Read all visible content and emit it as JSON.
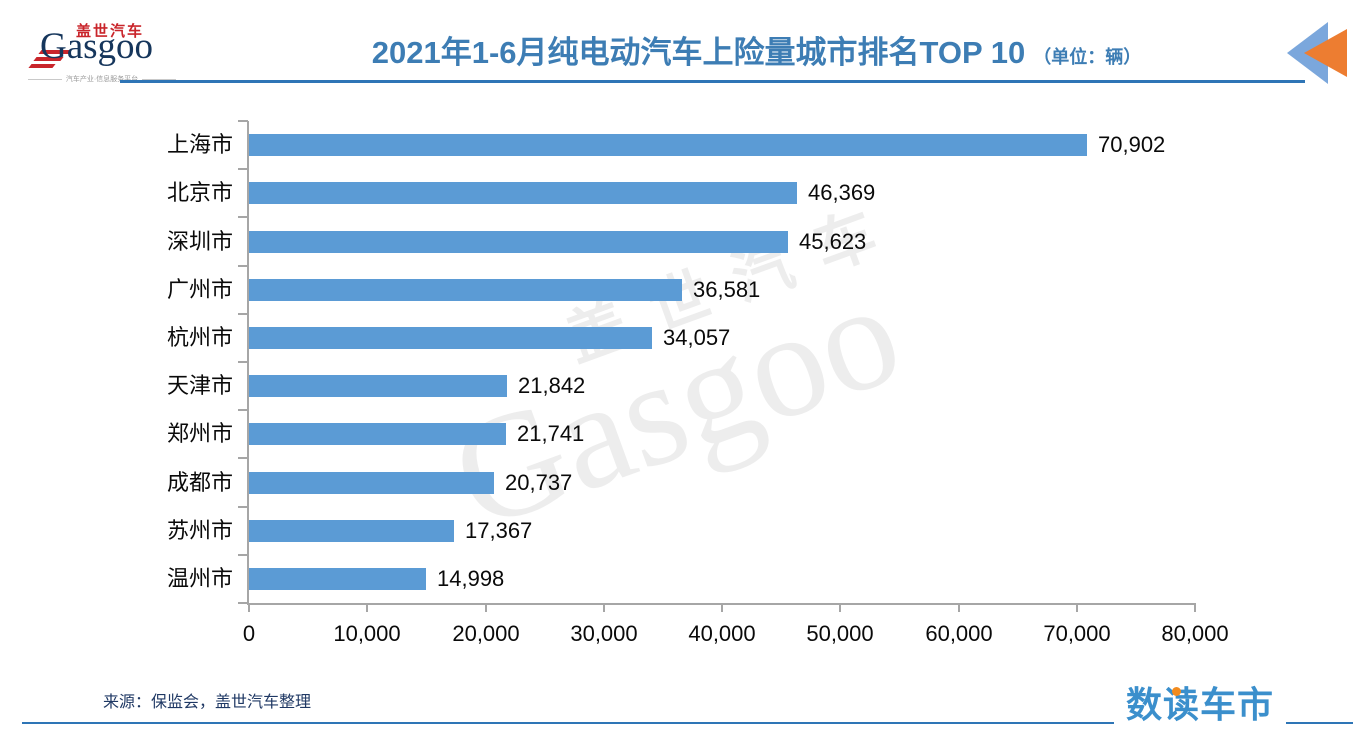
{
  "header": {
    "logo": {
      "cn": "盖世汽车",
      "en": "Gasgoo",
      "tagline": "汽车产业·信息服务平台"
    },
    "title": "2021年1-6月纯电动汽车上险量城市排名TOP 10",
    "title_unit": "（单位：辆）",
    "accent_color": "#2E75B6",
    "corner_icon": "double-left-triangles"
  },
  "chart_data": {
    "type": "bar",
    "orientation": "horizontal",
    "title": "2021年1-6月纯电动汽车上险量城市排名TOP 10（单位：辆）",
    "categories": [
      "上海市",
      "北京市",
      "深圳市",
      "广州市",
      "杭州市",
      "天津市",
      "郑州市",
      "成都市",
      "苏州市",
      "温州市"
    ],
    "values": [
      70902,
      46369,
      45623,
      36581,
      34057,
      21842,
      21741,
      20737,
      17367,
      14998
    ],
    "value_labels": [
      "70,902",
      "46,369",
      "45,623",
      "36,581",
      "34,057",
      "21,842",
      "21,741",
      "20,737",
      "17,367",
      "14,998"
    ],
    "xlim": [
      0,
      80000
    ],
    "x_ticks": [
      0,
      10000,
      20000,
      30000,
      40000,
      50000,
      60000,
      70000,
      80000
    ],
    "x_tick_labels": [
      "0",
      "10,000",
      "20,000",
      "30,000",
      "40,000",
      "50,000",
      "60,000",
      "70,000",
      "80,000"
    ],
    "xlabel": "",
    "ylabel": "",
    "bar_color": "#5B9BD5",
    "axis_color": "#A6A6A6",
    "grid": false,
    "legend": null
  },
  "watermark": {
    "line1": "盖世汽车",
    "line2": "Gasgoo"
  },
  "footer": {
    "source": "来源：保监会，盖世汽车整理",
    "brand": "数读车市"
  }
}
